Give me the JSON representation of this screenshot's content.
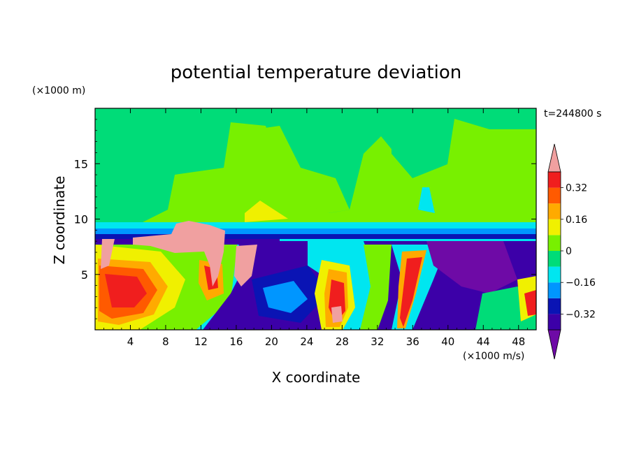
{
  "chart_data": {
    "type": "heatmap",
    "title": "potential temperature deviation",
    "time_label": "t=244800 s",
    "xlabel": "X coordinate",
    "ylabel": "Z coordinate",
    "x_unit": "(×1000 m/s)",
    "y_unit": "(×1000 m)",
    "xlim": [
      0,
      50
    ],
    "ylim": [
      0,
      20
    ],
    "x_ticks": [
      "4",
      "8",
      "12",
      "16",
      "20",
      "24",
      "28",
      "32",
      "36",
      "40",
      "44",
      "48"
    ],
    "y_ticks": [
      "5",
      "10",
      "15"
    ],
    "x_tick_values": [
      4,
      8,
      12,
      16,
      20,
      24,
      28,
      32,
      36,
      40,
      44,
      48
    ],
    "y_tick_values": [
      5,
      10,
      15
    ],
    "colorbar": {
      "labels": [
        "0.32",
        "0.16",
        "0",
        "−0.16",
        "−0.32"
      ],
      "label_levels": [
        0.32,
        0.16,
        0,
        -0.16,
        -0.32
      ],
      "levels": [
        -0.4,
        -0.32,
        -0.24,
        -0.16,
        -0.08,
        0,
        0.08,
        0.16,
        0.24,
        0.32,
        0.4
      ],
      "colors": [
        "#6e0aa6",
        "#3c00a8",
        "#0a14b4",
        "#0096ff",
        "#00e6f0",
        "#00dc78",
        "#78f000",
        "#f0f000",
        "#ffaa00",
        "#ff5a00",
        "#f01e1e",
        "#f0a0a0"
      ]
    }
  }
}
